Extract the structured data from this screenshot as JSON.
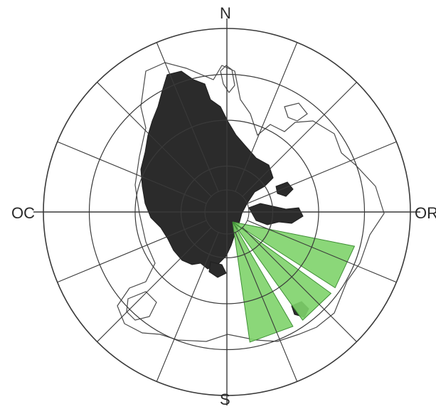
{
  "figure": {
    "type": "polar-sector-map",
    "compass_labels": {
      "north": "N",
      "south": "S",
      "west": "OC",
      "east": "OR"
    },
    "rings": 4,
    "spokes": 16,
    "colors": {
      "grid": "#3a3a3a",
      "urban_fill": "#2b2b2b",
      "outline": "#4a4a4a",
      "sector_fill": "#7ed36a",
      "sector_stroke": "#3f8f35",
      "background": "#ffffff"
    },
    "highlighted_sectors": [
      {
        "from_deg": 105,
        "to_deg": 125
      },
      {
        "from_deg": 128,
        "to_deg": 145
      },
      {
        "from_deg": 150,
        "to_deg": 170
      }
    ]
  }
}
